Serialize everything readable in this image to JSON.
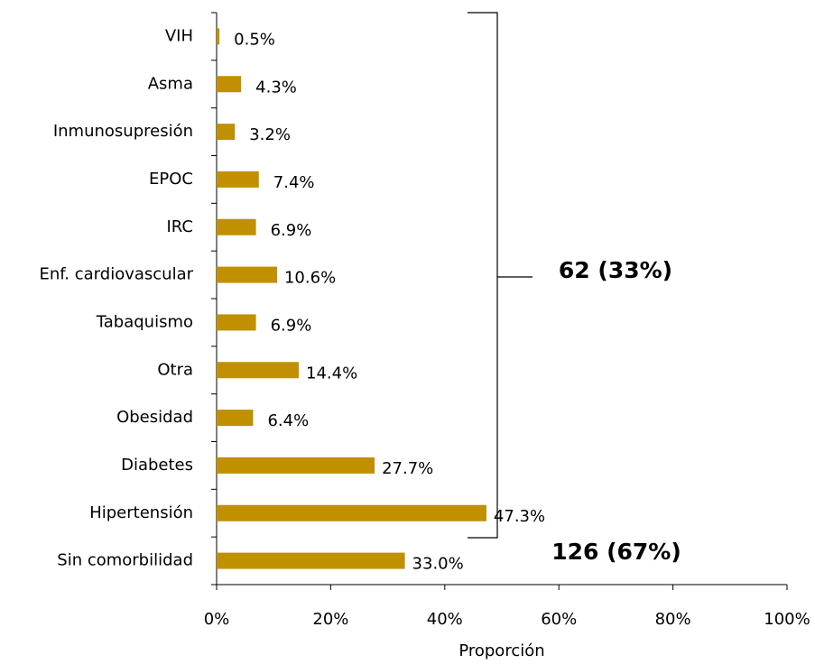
{
  "chart_data": {
    "type": "bar",
    "orientation": "horizontal",
    "categories": [
      "VIH",
      "Asma",
      "Inmunosupresión",
      "EPOC",
      "IRC",
      "Enf. cardiovascular",
      "Tabaquismo",
      "Otra",
      "Obesidad",
      "Diabetes",
      "Hipertensión",
      "Sin comorbilidad"
    ],
    "values": [
      0.5,
      4.3,
      3.2,
      7.4,
      6.9,
      10.6,
      6.9,
      14.4,
      6.4,
      27.7,
      47.3,
      33.0
    ],
    "value_labels": [
      "0.5%",
      "4.3%",
      "3.2%",
      "7.4%",
      "6.9%",
      "10.6%",
      "6.9%",
      "14.4%",
      "6.4%",
      "27.7%",
      "47.3%",
      "33.0%"
    ],
    "color": "#c09000",
    "xlabel": "Proporción",
    "xlim": [
      0,
      100
    ],
    "xticks": [
      {
        "value": 0,
        "label": "0%"
      },
      {
        "value": 20,
        "label": "20%"
      },
      {
        "value": 40,
        "label": "40%"
      },
      {
        "value": 60,
        "label": "60%"
      },
      {
        "value": 80,
        "label": "80%"
      },
      {
        "value": 100,
        "label": "100%"
      }
    ],
    "annotations": [
      "62 (33%)",
      "126 (67%)"
    ]
  }
}
